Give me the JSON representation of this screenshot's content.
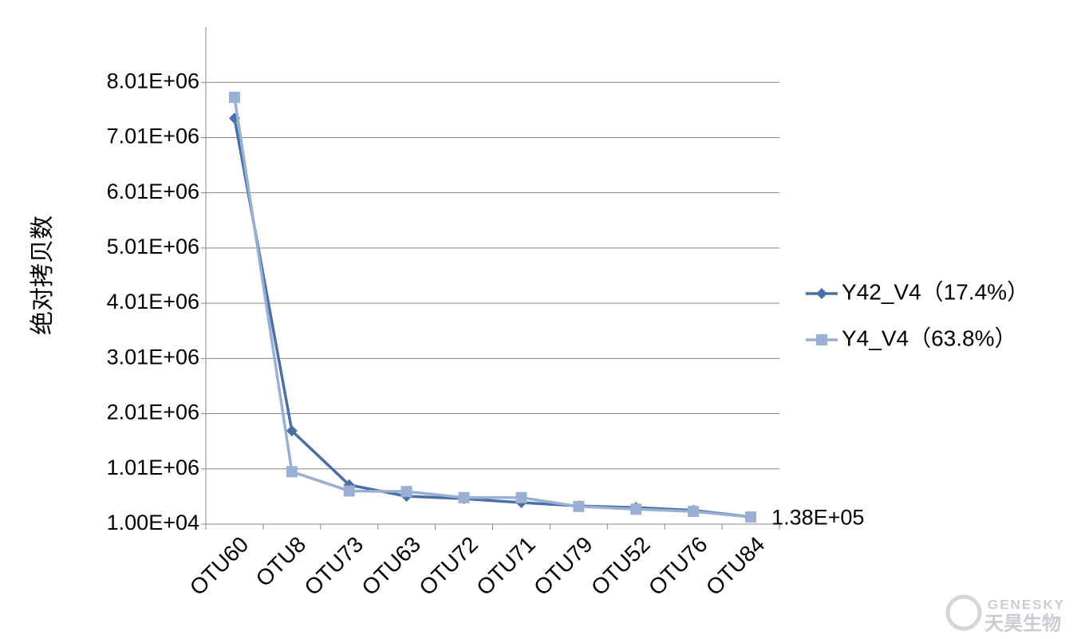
{
  "chart_data": {
    "type": "line",
    "y_label": "绝对拷贝数",
    "categories": [
      "OTU60",
      "OTU8",
      "OTU73",
      "OTU63",
      "OTU72",
      "OTU71",
      "OTU79",
      "OTU52",
      "OTU76",
      "OTU84"
    ],
    "series": [
      {
        "name": "Y42_V4（17.4%）",
        "color": "#4a6fa5",
        "marker": "diamond",
        "values": [
          7360000,
          1700000,
          720000,
          515000,
          470000,
          400000,
          340000,
          310000,
          260000,
          140000
        ]
      },
      {
        "name": "Y4_V4（63.8%）",
        "color": "#9aafd4",
        "marker": "square",
        "values": [
          7740000,
          960000,
          610000,
          600000,
          490000,
          490000,
          330000,
          280000,
          240000,
          138000
        ]
      }
    ],
    "annotation": "1.38E+05",
    "ylim": [
      10000,
      9010000
    ],
    "yticks": [
      {
        "value": 10000,
        "label": "1.00E+04"
      },
      {
        "value": 1010000,
        "label": "1.01E+06"
      },
      {
        "value": 2010000,
        "label": "2.01E+06"
      },
      {
        "value": 3010000,
        "label": "3.01E+06"
      },
      {
        "value": 4010000,
        "label": "4.01E+06"
      },
      {
        "value": 5010000,
        "label": "5.01E+06"
      },
      {
        "value": 6010000,
        "label": "6.01E+06"
      },
      {
        "value": 7010000,
        "label": "7.01E+06"
      },
      {
        "value": 8010000,
        "label": "8.01E+06"
      }
    ],
    "grid": true,
    "legend": "right",
    "watermark": [
      "GENESKY",
      "天昊生物"
    ]
  }
}
